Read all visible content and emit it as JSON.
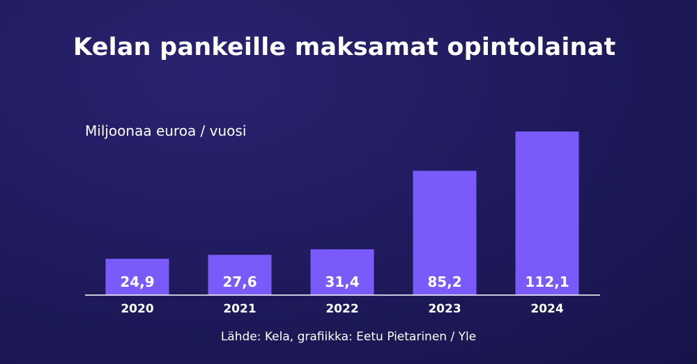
{
  "chart_data": {
    "type": "bar",
    "title": "Kelan pankeille maksamat opintolainat",
    "ylabel": "Miljoonaa euroa / vuosi",
    "xlabel": "",
    "categories": [
      "2020",
      "2021",
      "2022",
      "2023",
      "2024"
    ],
    "values": [
      24.9,
      27.6,
      31.4,
      85.2,
      112.1
    ],
    "value_labels": [
      "24,9",
      "27,6",
      "31,4",
      "85,2",
      "112,1"
    ],
    "ylim": [
      0,
      112.1
    ],
    "grid": false,
    "bar_color": "#7a5af8",
    "source": "Lähde: Kela, grafiikka: Eetu Pietarinen / Yle"
  }
}
